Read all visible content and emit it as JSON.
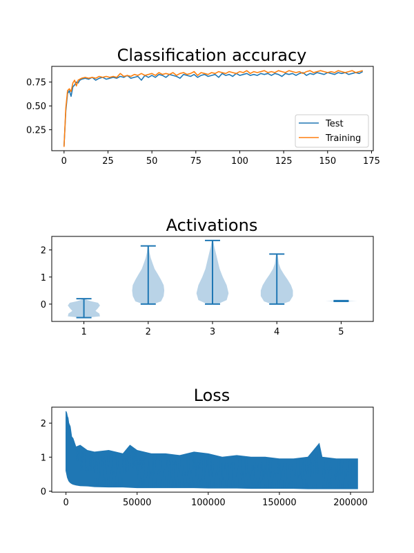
{
  "figure": {
    "background": "#ffffff"
  },
  "chart_data": [
    {
      "type": "line",
      "title": "Classification accuracy",
      "xlabel": "",
      "ylabel": "",
      "xlim": [
        -7,
        176
      ],
      "ylim": [
        0.03,
        0.915
      ],
      "xticks": [
        0,
        25,
        50,
        75,
        100,
        125,
        150,
        175
      ],
      "xtick_labels": [
        "0",
        "25",
        "50",
        "75",
        "100",
        "125",
        "150",
        "175"
      ],
      "yticks": [
        0.25,
        0.5,
        0.75
      ],
      "ytick_labels": [
        "0.25",
        "0.50",
        "0.75"
      ],
      "grid": false,
      "legend": {
        "position": "lower-right",
        "entries": [
          "Test",
          "Training"
        ]
      },
      "series": [
        {
          "name": "Test",
          "color": "#1f77b4",
          "x": [
            0,
            1,
            2,
            3,
            4,
            5,
            6,
            7,
            8,
            9,
            10,
            12,
            14,
            16,
            18,
            20,
            22,
            24,
            26,
            28,
            30,
            32,
            34,
            36,
            38,
            40,
            42,
            44,
            46,
            48,
            50,
            52,
            54,
            56,
            58,
            60,
            62,
            64,
            66,
            68,
            70,
            72,
            74,
            76,
            78,
            80,
            82,
            84,
            86,
            88,
            90,
            92,
            94,
            96,
            98,
            100,
            102,
            104,
            106,
            108,
            110,
            112,
            114,
            116,
            118,
            120,
            122,
            124,
            126,
            128,
            130,
            132,
            134,
            136,
            138,
            140,
            142,
            144,
            146,
            148,
            150,
            152,
            154,
            156,
            158,
            160,
            162,
            164,
            166,
            168,
            170
          ],
          "y": [
            0.08,
            0.45,
            0.63,
            0.66,
            0.6,
            0.7,
            0.72,
            0.75,
            0.74,
            0.77,
            0.78,
            0.79,
            0.78,
            0.8,
            0.77,
            0.79,
            0.8,
            0.78,
            0.79,
            0.8,
            0.79,
            0.81,
            0.8,
            0.82,
            0.79,
            0.8,
            0.81,
            0.77,
            0.82,
            0.8,
            0.82,
            0.8,
            0.83,
            0.82,
            0.8,
            0.83,
            0.82,
            0.81,
            0.79,
            0.83,
            0.82,
            0.81,
            0.83,
            0.8,
            0.82,
            0.83,
            0.81,
            0.82,
            0.83,
            0.8,
            0.84,
            0.82,
            0.83,
            0.81,
            0.84,
            0.82,
            0.83,
            0.84,
            0.82,
            0.83,
            0.82,
            0.84,
            0.83,
            0.84,
            0.82,
            0.84,
            0.83,
            0.81,
            0.84,
            0.83,
            0.84,
            0.82,
            0.84,
            0.85,
            0.82,
            0.84,
            0.83,
            0.85,
            0.84,
            0.83,
            0.85,
            0.84,
            0.83,
            0.85,
            0.84,
            0.85,
            0.83,
            0.84,
            0.85,
            0.84,
            0.86
          ]
        },
        {
          "name": "Training",
          "color": "#ff7f0e",
          "x": [
            0,
            1,
            2,
            3,
            4,
            5,
            6,
            7,
            8,
            9,
            10,
            12,
            14,
            16,
            18,
            20,
            22,
            24,
            26,
            28,
            30,
            32,
            34,
            36,
            38,
            40,
            42,
            44,
            46,
            48,
            50,
            52,
            54,
            56,
            58,
            60,
            62,
            64,
            66,
            68,
            70,
            72,
            74,
            76,
            78,
            80,
            82,
            84,
            86,
            88,
            90,
            92,
            94,
            96,
            98,
            100,
            102,
            104,
            106,
            108,
            110,
            112,
            114,
            116,
            118,
            120,
            122,
            124,
            126,
            128,
            130,
            132,
            134,
            136,
            138,
            140,
            142,
            144,
            146,
            148,
            150,
            152,
            154,
            156,
            158,
            160,
            162,
            164,
            166,
            168,
            170
          ],
          "y": [
            0.07,
            0.48,
            0.66,
            0.68,
            0.65,
            0.74,
            0.77,
            0.71,
            0.77,
            0.78,
            0.79,
            0.8,
            0.79,
            0.8,
            0.79,
            0.81,
            0.8,
            0.81,
            0.8,
            0.81,
            0.8,
            0.84,
            0.81,
            0.82,
            0.81,
            0.83,
            0.82,
            0.84,
            0.82,
            0.83,
            0.84,
            0.82,
            0.85,
            0.83,
            0.84,
            0.83,
            0.85,
            0.82,
            0.84,
            0.85,
            0.83,
            0.84,
            0.86,
            0.82,
            0.85,
            0.84,
            0.83,
            0.85,
            0.84,
            0.86,
            0.85,
            0.84,
            0.86,
            0.85,
            0.84,
            0.86,
            0.85,
            0.87,
            0.84,
            0.86,
            0.85,
            0.86,
            0.87,
            0.85,
            0.86,
            0.85,
            0.87,
            0.86,
            0.85,
            0.87,
            0.86,
            0.85,
            0.86,
            0.84,
            0.86,
            0.87,
            0.85,
            0.86,
            0.87,
            0.86,
            0.85,
            0.86,
            0.85,
            0.87,
            0.86,
            0.85,
            0.86,
            0.87,
            0.85,
            0.86,
            0.87
          ]
        }
      ]
    },
    {
      "type": "violin",
      "title": "Activations",
      "xlabel": "",
      "ylabel": "",
      "xlim": [
        0.5,
        5.5
      ],
      "ylim": [
        -0.64,
        2.5
      ],
      "xticks": [
        1,
        2,
        3,
        4,
        5
      ],
      "xtick_labels": [
        "1",
        "2",
        "3",
        "4",
        "5"
      ],
      "yticks": [
        0,
        1,
        2
      ],
      "ytick_labels": [
        "0",
        "1",
        "2"
      ],
      "grid": false,
      "fill_color": "#b9d3e7",
      "line_color": "#1f77b4",
      "violins": [
        {
          "position": 1,
          "min": -0.5,
          "max": 0.2,
          "profile_y": [
            -0.5,
            -0.45,
            -0.35,
            -0.25,
            -0.15,
            -0.05,
            0.05,
            0.1,
            0.15,
            0.2
          ],
          "profile_halfwidth": [
            0.05,
            0.25,
            0.24,
            0.18,
            0.22,
            0.25,
            0.22,
            0.12,
            0.05,
            0.01
          ]
        },
        {
          "position": 2,
          "min": 0.0,
          "max": 2.15,
          "profile_y": [
            0.0,
            0.1,
            0.3,
            0.5,
            0.7,
            0.9,
            1.1,
            1.3,
            1.5,
            1.7,
            1.9,
            2.15
          ],
          "profile_halfwidth": [
            0.08,
            0.2,
            0.24,
            0.25,
            0.24,
            0.2,
            0.15,
            0.1,
            0.07,
            0.04,
            0.02,
            0.01
          ]
        },
        {
          "position": 3,
          "min": 0.0,
          "max": 2.35,
          "profile_y": [
            0.0,
            0.15,
            0.4,
            0.7,
            1.0,
            1.3,
            1.6,
            1.9,
            2.1,
            2.35
          ],
          "profile_halfwidth": [
            0.08,
            0.22,
            0.25,
            0.22,
            0.16,
            0.11,
            0.08,
            0.05,
            0.03,
            0.01
          ]
        },
        {
          "position": 4,
          "min": 0.0,
          "max": 1.85,
          "profile_y": [
            0.0,
            0.1,
            0.3,
            0.5,
            0.7,
            0.9,
            1.1,
            1.3,
            1.5,
            1.7,
            1.85
          ],
          "profile_halfwidth": [
            0.08,
            0.2,
            0.25,
            0.25,
            0.22,
            0.17,
            0.11,
            0.06,
            0.03,
            0.02,
            0.01
          ]
        },
        {
          "position": 5,
          "min": 0.1,
          "max": 0.13,
          "profile_y": [
            0.1,
            0.113,
            0.115,
            0.117,
            0.13
          ],
          "profile_halfwidth": [
            0.05,
            0.2,
            0.25,
            0.2,
            0.05
          ]
        }
      ]
    },
    {
      "type": "line",
      "title": "Loss",
      "xlabel": "",
      "ylabel": "",
      "xlim": [
        -10000,
        216000
      ],
      "ylim": [
        -0.03,
        2.47
      ],
      "xticks": [
        0,
        50000,
        100000,
        150000,
        200000
      ],
      "xtick_labels": [
        "0",
        "50000",
        "100000",
        "150000",
        "200000"
      ],
      "yticks": [
        0,
        1,
        2
      ],
      "ytick_labels": [
        "0",
        "1",
        "2"
      ],
      "grid": false,
      "series": [
        {
          "color": "#1f77b4",
          "x": [
            0,
            500,
            1000,
            1500,
            2000,
            3000,
            4000,
            5000,
            7000,
            10000,
            15000,
            20000,
            30000,
            40000,
            45000,
            50000,
            60000,
            70000,
            80000,
            90000,
            100000,
            110000,
            120000,
            130000,
            140000,
            150000,
            160000,
            170000,
            178000,
            180000,
            190000,
            200000,
            205000
          ],
          "upper": [
            2.35,
            2.3,
            2.2,
            2.15,
            2.0,
            1.9,
            1.6,
            1.55,
            1.3,
            1.35,
            1.2,
            1.15,
            1.2,
            1.1,
            1.35,
            1.2,
            1.1,
            1.1,
            1.05,
            1.15,
            1.1,
            1.0,
            1.05,
            1.0,
            1.0,
            0.95,
            0.95,
            1.0,
            1.4,
            1.0,
            0.95,
            0.95,
            0.95
          ],
          "lower": [
            0.6,
            0.5,
            0.4,
            0.35,
            0.3,
            0.25,
            0.22,
            0.2,
            0.18,
            0.16,
            0.15,
            0.13,
            0.12,
            0.12,
            0.11,
            0.1,
            0.1,
            0.1,
            0.1,
            0.1,
            0.09,
            0.09,
            0.09,
            0.08,
            0.08,
            0.08,
            0.08,
            0.07,
            0.07,
            0.07,
            0.07,
            0.07,
            0.07
          ]
        }
      ]
    }
  ]
}
